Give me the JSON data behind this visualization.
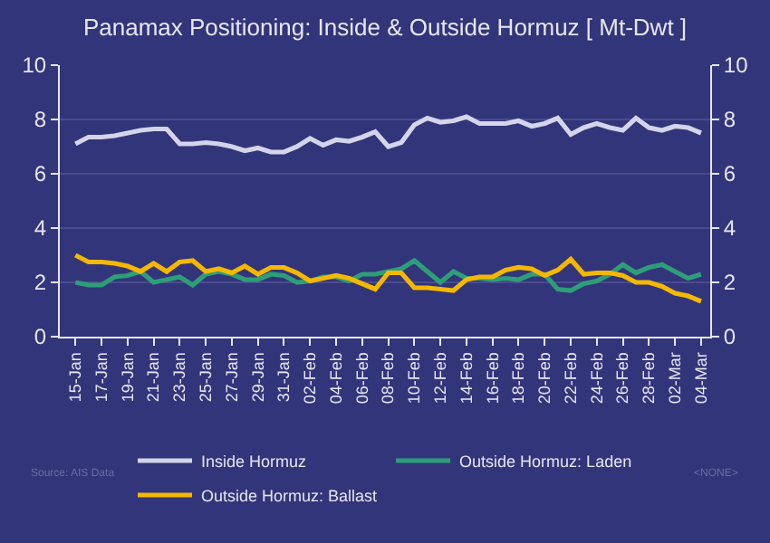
{
  "chart_data": {
    "type": "line",
    "title": "Panamax Positioning: Inside & Outside Hormuz [ Mt-Dwt ]",
    "categories": [
      "15-Jan",
      null,
      "17-Jan",
      null,
      "19-Jan",
      null,
      "21-Jan",
      null,
      "23-Jan",
      null,
      "25-Jan",
      null,
      "27-Jan",
      null,
      "29-Jan",
      null,
      "31-Jan",
      null,
      "02-Feb",
      null,
      "04-Feb",
      null,
      "06-Feb",
      null,
      "08-Feb",
      null,
      "10-Feb",
      null,
      "12-Feb",
      null,
      "14-Feb",
      null,
      "16-Feb",
      null,
      "18-Feb",
      null,
      "20-Feb",
      null,
      "22-Feb",
      null,
      "24-Feb",
      null,
      "26-Feb",
      null,
      "28-Feb",
      null,
      "02-Mar",
      null,
      "04-Mar"
    ],
    "series": [
      {
        "name": "Inside Hormuz",
        "color": "#d4d4ea",
        "values": [
          7.1,
          7.35,
          7.35,
          7.4,
          7.5,
          7.6,
          7.65,
          7.65,
          7.1,
          7.1,
          7.15,
          7.1,
          7.0,
          6.85,
          6.95,
          6.8,
          6.8,
          7.0,
          7.3,
          7.05,
          7.25,
          7.2,
          7.35,
          7.55,
          7.0,
          7.15,
          7.8,
          8.05,
          7.9,
          7.95,
          8.1,
          7.85,
          7.85,
          7.85,
          7.95,
          7.75,
          7.85,
          8.05,
          7.45,
          7.7,
          7.85,
          7.7,
          7.6,
          8.05,
          7.7,
          7.6,
          7.75,
          7.7,
          7.5
        ]
      },
      {
        "name": "Outside Hormuz: Laden",
        "color": "#2e9e78",
        "values": [
          2.0,
          1.9,
          1.9,
          2.2,
          2.25,
          2.4,
          2.0,
          2.1,
          2.2,
          1.9,
          2.3,
          2.4,
          2.3,
          2.1,
          2.1,
          2.3,
          2.25,
          2.0,
          2.05,
          2.2,
          2.2,
          2.05,
          2.3,
          2.3,
          2.4,
          2.5,
          2.8,
          2.4,
          2.0,
          2.4,
          2.15,
          2.15,
          2.1,
          2.15,
          2.1,
          2.3,
          2.3,
          1.75,
          1.7,
          1.95,
          2.05,
          2.3,
          2.65,
          2.35,
          2.55,
          2.65,
          2.4,
          2.15,
          2.3
        ]
      },
      {
        "name": "Outside Hormuz: Ballast",
        "color": "#f5b800",
        "values": [
          3.0,
          2.75,
          2.75,
          2.7,
          2.6,
          2.4,
          2.7,
          2.4,
          2.75,
          2.8,
          2.4,
          2.5,
          2.35,
          2.6,
          2.3,
          2.55,
          2.55,
          2.35,
          2.05,
          2.15,
          2.25,
          2.15,
          1.95,
          1.75,
          2.35,
          2.35,
          1.8,
          1.8,
          1.75,
          1.7,
          2.1,
          2.2,
          2.2,
          2.45,
          2.55,
          2.5,
          2.25,
          2.45,
          2.85,
          2.3,
          2.35,
          2.35,
          2.25,
          2.0,
          2.0,
          1.85,
          1.6,
          1.5,
          1.3
        ]
      }
    ],
    "ylim": [
      0,
      10
    ],
    "yticks": [
      0,
      2,
      4,
      6,
      8,
      10
    ],
    "y2lim": [
      0,
      10
    ],
    "y2ticks": [
      0,
      2,
      4,
      6,
      8,
      10
    ],
    "grid": "y",
    "legend": "bottom",
    "marker": "none",
    "line_style": "solid",
    "annotations": [
      "Source: AIS Data",
      "<NONE>"
    ]
  }
}
